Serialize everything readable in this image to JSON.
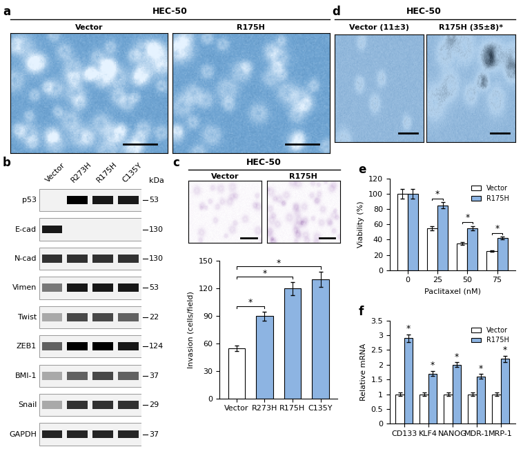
{
  "panels": {
    "a": {
      "label": "a",
      "header": "HEC-50",
      "images": [
        "Vector",
        "R175H"
      ]
    },
    "b": {
      "label": "b",
      "lanes": [
        "Vector",
        "R273H",
        "R175H",
        "C135Y"
      ],
      "unit": "kDa",
      "rows": [
        {
          "name": "p53",
          "kDa": 53,
          "bands": [
            0.0,
            1.0,
            0.9,
            0.9
          ]
        },
        {
          "name": "E-cad",
          "kDa": 130,
          "bands": [
            0.9,
            0.0,
            0.0,
            0.0
          ]
        },
        {
          "name": "N-cad",
          "kDa": 130,
          "bands": [
            0.8,
            0.8,
            0.8,
            0.8
          ]
        },
        {
          "name": "Vimen",
          "kDa": 53,
          "bands": [
            0.5,
            0.9,
            0.9,
            0.9
          ]
        },
        {
          "name": "Twist",
          "kDa": 22,
          "bands": [
            0.3,
            0.7,
            0.7,
            0.6
          ]
        },
        {
          "name": "ZEB1",
          "kDa": 124,
          "bands": [
            0.6,
            1.0,
            1.0,
            0.9
          ]
        },
        {
          "name": "BMI-1",
          "kDa": 37,
          "bands": [
            0.3,
            0.6,
            0.7,
            0.6
          ]
        },
        {
          "name": "Snail",
          "kDa": 29,
          "bands": [
            0.3,
            0.8,
            0.8,
            0.8
          ]
        },
        {
          "name": "GAPDH",
          "kDa": 37,
          "bands": [
            0.85,
            0.85,
            0.85,
            0.85
          ]
        }
      ]
    },
    "c": {
      "label": "c",
      "header": "HEC-50",
      "images": [
        "Vector",
        "R175H"
      ]
    },
    "d": {
      "label": "d",
      "header": "HEC-50",
      "images": [
        "Vector (11±3)",
        "R175H (35±8)*"
      ]
    },
    "e": {
      "label": "e"
    },
    "f": {
      "label": "f"
    }
  },
  "chart_data": [
    {
      "type": "bar",
      "panel": "c",
      "categories": [
        "Vector",
        "R273H",
        "R175H",
        "C135Y"
      ],
      "values": [
        55,
        90,
        120,
        130
      ],
      "errors": [
        3,
        5,
        7,
        8
      ],
      "colors": [
        "#ffffff",
        "#8db4e2",
        "#8db4e2",
        "#8db4e2"
      ],
      "y_label": "Invasion (cells/field)",
      "ylim": [
        0,
        150
      ],
      "yticks": [
        0,
        30,
        60,
        90,
        120,
        150
      ],
      "significance": [
        {
          "from": "Vector",
          "to": "R273H",
          "label": "*"
        },
        {
          "from": "Vector",
          "to": "R175H",
          "label": "*"
        },
        {
          "from": "Vector",
          "to": "C135Y",
          "label": "*"
        }
      ]
    },
    {
      "type": "bar",
      "panel": "e",
      "x_label": "Paclitaxel (nM)",
      "y_label": "Viability (%)",
      "categories": [
        "0",
        "25",
        "50",
        "75"
      ],
      "series": [
        {
          "name": "Vector",
          "color": "#ffffff",
          "values": [
            100,
            55,
            35,
            25
          ],
          "errors": [
            6,
            3,
            2,
            1
          ]
        },
        {
          "name": "R175H",
          "color": "#8db4e2",
          "values": [
            100,
            85,
            55,
            42
          ],
          "errors": [
            6,
            4,
            3,
            2
          ]
        }
      ],
      "ylim": [
        0,
        120
      ],
      "yticks": [
        0,
        20,
        40,
        60,
        80,
        100,
        120
      ],
      "legend": "upper right",
      "significance": [
        {
          "category": "25",
          "label": "*"
        },
        {
          "category": "50",
          "label": "*"
        },
        {
          "category": "75",
          "label": "*"
        }
      ]
    },
    {
      "type": "bar",
      "panel": "f",
      "y_label": "Relative mRNA",
      "categories": [
        "CD133",
        "KLF4",
        "NANOG",
        "MDR-1",
        "MRP-1"
      ],
      "series": [
        {
          "name": "Vector",
          "color": "#ffffff",
          "values": [
            1,
            1,
            1,
            1,
            1
          ],
          "errors": [
            0.05,
            0.05,
            0.05,
            0.05,
            0.05
          ]
        },
        {
          "name": "R175H",
          "color": "#8db4e2",
          "values": [
            2.9,
            1.7,
            2.0,
            1.6,
            2.2
          ],
          "errors": [
            0.12,
            0.08,
            0.08,
            0.08,
            0.1
          ]
        }
      ],
      "ylim": [
        0,
        3.5
      ],
      "yticks": [
        0,
        0.5,
        1,
        1.5,
        2,
        2.5,
        3,
        3.5
      ],
      "legend": "upper right",
      "significance": [
        {
          "category": "CD133",
          "series": "R175H",
          "label": "*"
        },
        {
          "category": "KLF4",
          "series": "R175H",
          "label": "*"
        },
        {
          "category": "NANOG",
          "series": "R175H",
          "label": "*"
        },
        {
          "category": "MDR-1",
          "series": "R175H",
          "label": "*"
        },
        {
          "category": "MRP-1",
          "series": "R175H",
          "label": "*"
        }
      ]
    }
  ]
}
